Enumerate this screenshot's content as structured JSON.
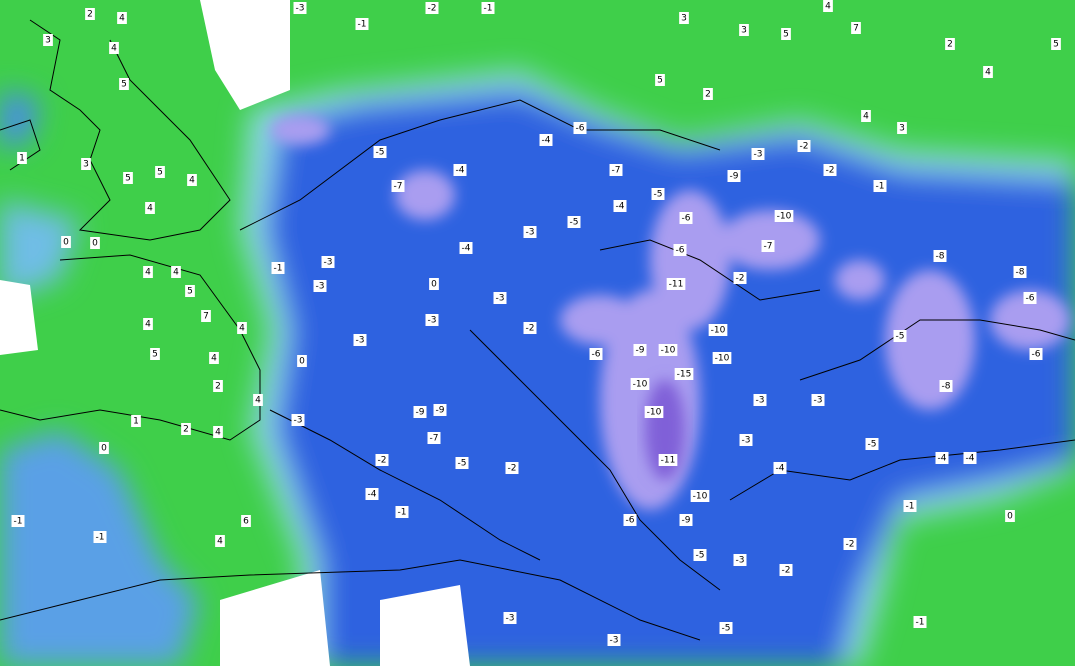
{
  "map": {
    "labels": [
      2,
      4,
      3,
      4,
      5,
      1,
      3,
      5,
      4,
      5,
      4,
      0,
      0,
      4,
      4,
      5,
      7,
      4,
      4,
      5,
      4,
      2,
      1,
      2,
      4,
      0,
      6,
      4,
      -1,
      -1,
      -3,
      -1,
      -2,
      -1,
      -5,
      -7,
      -4,
      -4,
      -6,
      -7,
      -5,
      -6,
      -5,
      -4,
      -4,
      -3,
      0,
      -3,
      -3,
      -2,
      -6,
      -9,
      -10,
      -15,
      -10,
      -10,
      -10,
      -10,
      -6,
      -11,
      -2,
      -7,
      -10,
      -9,
      -3,
      -2,
      -2,
      -1,
      -8,
      -8,
      -6,
      -6,
      -8,
      -5,
      -5,
      -4,
      -4,
      -3,
      -3,
      -3,
      -4,
      -11,
      -10,
      -9,
      -6,
      -5,
      -3,
      -2,
      -2,
      -1,
      0,
      -1,
      -5,
      -3,
      -3,
      -5,
      -2,
      -4,
      -1,
      -2,
      -9,
      -9,
      -7,
      -3,
      0,
      -3,
      4,
      -3,
      -1,
      -3,
      3,
      3,
      5,
      4,
      7,
      2,
      5,
      4,
      4,
      3,
      5,
      2
    ]
  }
}
